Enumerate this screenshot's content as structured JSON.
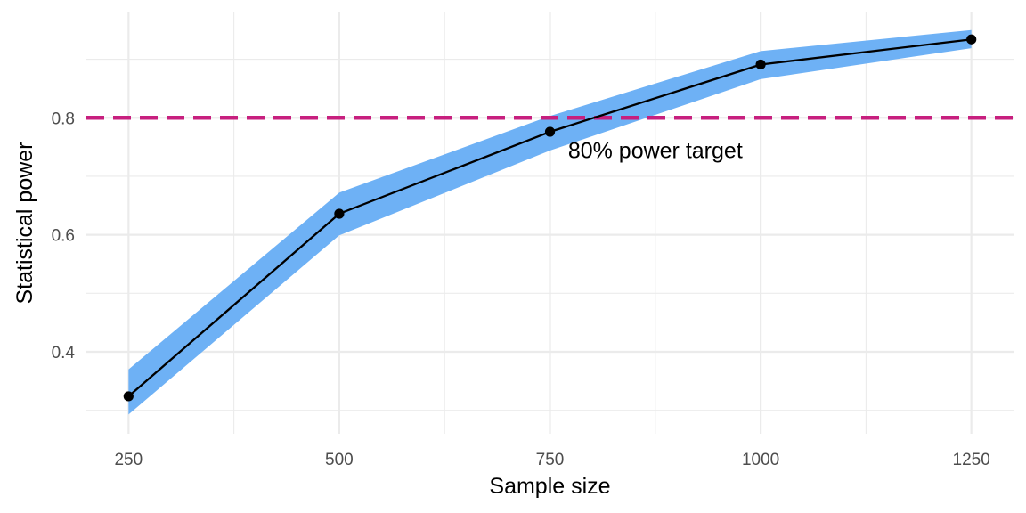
{
  "chart_data": {
    "type": "line",
    "title": "",
    "xlabel": "Sample size",
    "ylabel": "Statistical power",
    "x": [
      250,
      500,
      750,
      1000,
      1250
    ],
    "series": [
      {
        "values": [
          0.324,
          0.636,
          0.776,
          0.891,
          0.934
        ],
        "lower": [
          0.293,
          0.599,
          0.744,
          0.866,
          0.919
        ],
        "upper": [
          0.37,
          0.672,
          0.803,
          0.914,
          0.95
        ]
      }
    ],
    "xlim": [
      200,
      1300
    ],
    "ylim": [
      0.26,
      0.98
    ],
    "x_ticks": [
      250,
      500,
      750,
      1000,
      1250
    ],
    "x_tick_labels": [
      "250",
      "500",
      "750",
      "1000",
      "1250"
    ],
    "y_ticks": [
      0.4,
      0.6,
      0.8
    ],
    "y_tick_labels": [
      "0.4",
      "0.6",
      "0.8"
    ],
    "grid": true,
    "reference_line": {
      "y": 0.8,
      "style": "dashed",
      "color": "#c71f7e"
    },
    "annotation": {
      "text": "80% power target",
      "x": 875,
      "y": 0.745
    },
    "colors": {
      "ribbon": "#6eb1f5",
      "line": "#000000",
      "points": "#000000",
      "grid": "#ebebeb",
      "reference": "#c71f7e"
    }
  }
}
